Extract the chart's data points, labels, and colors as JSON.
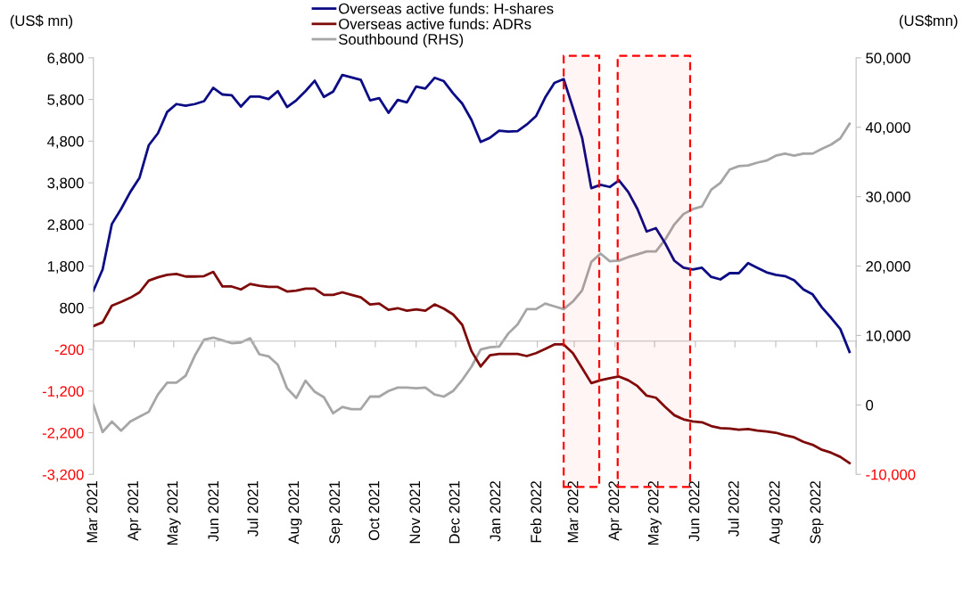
{
  "chart_data": {
    "type": "line",
    "ylabel": "(US$ mn)",
    "y2label": "(US$mn)",
    "legend": "top",
    "grid": false,
    "marker": "none",
    "line_style": "solid",
    "x": [
      "2021-03-01",
      "2021-03-08",
      "2021-03-15",
      "2021-03-22",
      "2021-03-29",
      "2021-04-05",
      "2021-04-12",
      "2021-04-19",
      "2021-04-26",
      "2021-05-03",
      "2021-05-10",
      "2021-05-17",
      "2021-05-24",
      "2021-05-31",
      "2021-06-07",
      "2021-06-14",
      "2021-06-21",
      "2021-06-28",
      "2021-07-05",
      "2021-07-12",
      "2021-07-19",
      "2021-07-26",
      "2021-08-02",
      "2021-08-09",
      "2021-08-16",
      "2021-08-23",
      "2021-08-30",
      "2021-09-06",
      "2021-09-13",
      "2021-09-20",
      "2021-09-27",
      "2021-10-04",
      "2021-10-11",
      "2021-10-18",
      "2021-10-25",
      "2021-11-01",
      "2021-11-08",
      "2021-11-15",
      "2021-11-22",
      "2021-11-29",
      "2021-12-06",
      "2021-12-13",
      "2021-12-20",
      "2021-12-27",
      "2022-01-03",
      "2022-01-10",
      "2022-01-17",
      "2022-01-24",
      "2022-01-31",
      "2022-02-07",
      "2022-02-14",
      "2022-02-21",
      "2022-02-28",
      "2022-03-07",
      "2022-03-14",
      "2022-03-21",
      "2022-03-28",
      "2022-04-04",
      "2022-04-11",
      "2022-04-18",
      "2022-04-25",
      "2022-05-02",
      "2022-05-09",
      "2022-05-16",
      "2022-05-23",
      "2022-05-30",
      "2022-06-06",
      "2022-06-13",
      "2022-06-20",
      "2022-06-27",
      "2022-07-04",
      "2022-07-11",
      "2022-07-18",
      "2022-07-25",
      "2022-08-01",
      "2022-08-08",
      "2022-08-15",
      "2022-08-22",
      "2022-08-29",
      "2022-09-05",
      "2022-09-12",
      "2022-09-19",
      "2022-09-26"
    ],
    "series": [
      {
        "name": "Overseas active funds: H-shares",
        "color": "#0c0c85",
        "values": [
          1210,
          1720,
          2810,
          3170,
          3580,
          3920,
          4700,
          4990,
          5500,
          5690,
          5650,
          5690,
          5760,
          6080,
          5920,
          5900,
          5630,
          5870,
          5870,
          5810,
          6000,
          5620,
          5780,
          6000,
          6250,
          5860,
          5990,
          6390,
          6330,
          6270,
          5780,
          5830,
          5480,
          5790,
          5730,
          6110,
          6060,
          6320,
          6240,
          5950,
          5700,
          5310,
          4780,
          4880,
          5050,
          5030,
          5040,
          5200,
          5400,
          5850,
          6200,
          6290,
          5600,
          4880,
          3670,
          3750,
          3700,
          3860,
          3580,
          3170,
          2630,
          2710,
          2350,
          1930,
          1760,
          1720,
          1760,
          1540,
          1480,
          1630,
          1630,
          1870,
          1760,
          1650,
          1590,
          1560,
          1460,
          1240,
          1120,
          810,
          560,
          290,
          -260
        ]
      },
      {
        "name": "Overseas active funds: ADRs",
        "color": "#7f0a0a",
        "values": [
          360,
          450,
          850,
          940,
          1040,
          1170,
          1450,
          1530,
          1590,
          1610,
          1550,
          1550,
          1560,
          1660,
          1310,
          1310,
          1240,
          1370,
          1330,
          1300,
          1300,
          1190,
          1210,
          1260,
          1260,
          1110,
          1110,
          1170,
          1110,
          1050,
          880,
          900,
          750,
          790,
          730,
          760,
          730,
          880,
          780,
          640,
          390,
          -240,
          -610,
          -340,
          -310,
          -310,
          -310,
          -360,
          -290,
          -190,
          -80,
          -80,
          -290,
          -650,
          -1010,
          -940,
          -890,
          -850,
          -940,
          -1080,
          -1310,
          -1360,
          -1580,
          -1780,
          -1880,
          -1930,
          -1950,
          -2040,
          -2090,
          -2100,
          -2130,
          -2110,
          -2150,
          -2170,
          -2200,
          -2260,
          -2310,
          -2420,
          -2490,
          -2610,
          -2680,
          -2780,
          -2930
        ]
      },
      {
        "name": "Southbound (RHS)",
        "color": "#a6a6a6",
        "axis": "y2",
        "values": [
          0,
          -3900,
          -2400,
          -3700,
          -2400,
          -1700,
          -1000,
          1500,
          3200,
          3200,
          4200,
          7100,
          9400,
          9700,
          9300,
          8900,
          9000,
          9600,
          7300,
          7000,
          5800,
          2400,
          1000,
          3500,
          1900,
          1100,
          -1200,
          -300,
          -600,
          -600,
          1200,
          1200,
          2000,
          2500,
          2500,
          2400,
          2500,
          1500,
          1200,
          2000,
          3600,
          5500,
          8000,
          8300,
          8400,
          10300,
          11600,
          13800,
          13800,
          14600,
          14200,
          13800,
          14900,
          16500,
          20600,
          21800,
          20700,
          20800,
          21300,
          21700,
          22100,
          22100,
          23800,
          26000,
          27500,
          28200,
          28600,
          31000,
          32000,
          33900,
          34400,
          34500,
          34900,
          35200,
          35900,
          36200,
          35900,
          36200,
          36200,
          36900,
          37500,
          38400,
          40500
        ]
      }
    ],
    "xlim": [
      "2021-03-01",
      "2022-10-01"
    ],
    "xticks": [
      {
        "value": "2021-03-01",
        "label": "Mar 2021"
      },
      {
        "value": "2021-04-01",
        "label": "Apr 2021"
      },
      {
        "value": "2021-05-01",
        "label": "May 2021"
      },
      {
        "value": "2021-06-01",
        "label": "Jun 2021"
      },
      {
        "value": "2021-07-01",
        "label": "Jul 2021"
      },
      {
        "value": "2021-08-01",
        "label": "Aug 2021"
      },
      {
        "value": "2021-09-01",
        "label": "Sep 2021"
      },
      {
        "value": "2021-10-01",
        "label": "Oct 2021"
      },
      {
        "value": "2021-11-01",
        "label": "Nov 2021"
      },
      {
        "value": "2021-12-01",
        "label": "Dec 2021"
      },
      {
        "value": "2022-01-01",
        "label": "Jan 2022"
      },
      {
        "value": "2022-02-01",
        "label": "Feb 2022"
      },
      {
        "value": "2022-03-01",
        "label": "Mar 2022"
      },
      {
        "value": "2022-04-01",
        "label": "Apr 2022"
      },
      {
        "value": "2022-05-01",
        "label": "May 2022"
      },
      {
        "value": "2022-06-01",
        "label": "Jun 2022"
      },
      {
        "value": "2022-07-01",
        "label": "Jul 2022"
      },
      {
        "value": "2022-08-01",
        "label": "Aug 2022"
      },
      {
        "value": "2022-09-01",
        "label": "Sep 2022"
      },
      {
        "value": "2022-10-01",
        "label": null
      }
    ],
    "ylim": [
      -3200,
      6800
    ],
    "yticks": [
      {
        "value": 6800,
        "label": "6,800"
      },
      {
        "value": 5800,
        "label": "5,800"
      },
      {
        "value": 4800,
        "label": "4,800"
      },
      {
        "value": 3800,
        "label": "3,800"
      },
      {
        "value": 2800,
        "label": "2,800"
      },
      {
        "value": 1800,
        "label": "1,800"
      },
      800,
      {
        "value": -200,
        "label": "-200"
      },
      {
        "value": -1200,
        "label": "-1,200"
      },
      {
        "value": -2200,
        "label": "-2,200"
      },
      {
        "value": -3200,
        "label": "-3,200"
      }
    ],
    "y2lim": [
      -10000,
      50000
    ],
    "y2ticks": [
      {
        "value": 50000,
        "label": "50,000"
      },
      {
        "value": 40000,
        "label": "40,000"
      },
      {
        "value": 30000,
        "label": "30,000"
      },
      {
        "value": 20000,
        "label": "20,000"
      },
      {
        "value": 10000,
        "label": "10,000"
      },
      0,
      {
        "value": -10000,
        "label": "-10,000"
      }
    ],
    "bands": [
      {
        "axis": "x",
        "from": "2022-02-21",
        "to": "2022-03-20",
        "color": "#ff0000"
      },
      {
        "axis": "x",
        "from": "2022-04-03",
        "to": "2022-05-28",
        "color": "#ff0000"
      }
    ]
  }
}
